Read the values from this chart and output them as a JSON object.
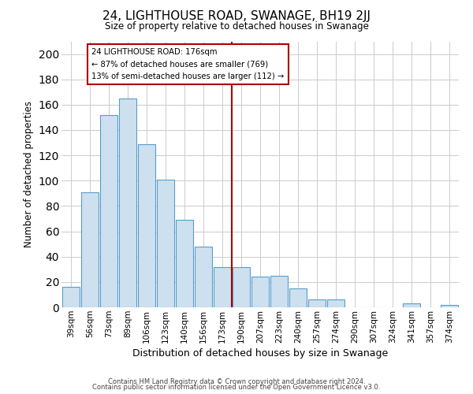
{
  "title": "24, LIGHTHOUSE ROAD, SWANAGE, BH19 2JJ",
  "subtitle": "Size of property relative to detached houses in Swanage",
  "xlabel": "Distribution of detached houses by size in Swanage",
  "ylabel": "Number of detached properties",
  "bar_labels": [
    "39sqm",
    "56sqm",
    "73sqm",
    "89sqm",
    "106sqm",
    "123sqm",
    "140sqm",
    "156sqm",
    "173sqm",
    "190sqm",
    "207sqm",
    "223sqm",
    "240sqm",
    "257sqm",
    "274sqm",
    "290sqm",
    "307sqm",
    "324sqm",
    "341sqm",
    "357sqm",
    "374sqm"
  ],
  "bar_values": [
    16,
    91,
    152,
    165,
    129,
    101,
    69,
    48,
    32,
    32,
    24,
    25,
    15,
    6,
    6,
    0,
    0,
    0,
    3,
    0,
    2
  ],
  "bar_color": "#cce0f0",
  "bar_edge_color": "#5a9dc8",
  "vline_x": 8.5,
  "vline_color": "#aa0000",
  "annotation_title": "24 LIGHTHOUSE ROAD: 176sqm",
  "annotation_line1": "← 87% of detached houses are smaller (769)",
  "annotation_line2": "13% of semi-detached houses are larger (112) →",
  "annotation_box_color": "#ffffff",
  "annotation_box_edge": "#aa0000",
  "ylim": [
    0,
    210
  ],
  "yticks": [
    0,
    20,
    40,
    60,
    80,
    100,
    120,
    140,
    160,
    180,
    200
  ],
  "footer1": "Contains HM Land Registry data © Crown copyright and database right 2024.",
  "footer2": "Contains public sector information licensed under the Open Government Licence v3.0.",
  "background_color": "#ffffff",
  "grid_color": "#cccccc"
}
